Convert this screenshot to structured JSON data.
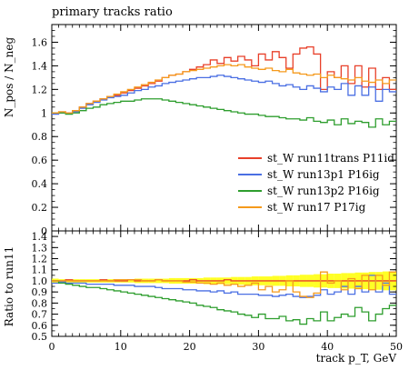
{
  "chart_data": [
    {
      "type": "line",
      "title": "primary tracks ratio",
      "ylabel": "N_pos / N_neg",
      "xlabel": "",
      "xlim": [
        0,
        50
      ],
      "ylim": [
        0,
        1.75
      ],
      "yticks": [
        "0",
        "0.2",
        "0.4",
        "0.6",
        "0.8",
        "1",
        "1.2",
        "1.4",
        "1.6"
      ],
      "legend_position": "lower-right",
      "grid": false,
      "step_histogram": true,
      "bin_width": 1,
      "series": [
        {
          "name": "st_W run11trans P11id",
          "color": "#e8402a",
          "values": [
            1.0,
            1.01,
            1.0,
            1.02,
            1.05,
            1.08,
            1.1,
            1.12,
            1.14,
            1.15,
            1.17,
            1.19,
            1.21,
            1.23,
            1.25,
            1.27,
            1.3,
            1.32,
            1.33,
            1.35,
            1.37,
            1.39,
            1.41,
            1.45,
            1.42,
            1.47,
            1.44,
            1.48,
            1.45,
            1.4,
            1.5,
            1.45,
            1.52,
            1.47,
            1.38,
            1.5,
            1.55,
            1.56,
            1.5,
            1.2,
            1.35,
            1.3,
            1.4,
            1.25,
            1.4,
            1.22,
            1.38,
            1.2,
            1.3,
            1.2
          ]
        },
        {
          "name": "st_W run13p1 P16ig",
          "color": "#4a6fe3",
          "values": [
            0.99,
            1.0,
            1.0,
            1.01,
            1.04,
            1.07,
            1.09,
            1.11,
            1.13,
            1.14,
            1.15,
            1.17,
            1.19,
            1.2,
            1.22,
            1.23,
            1.25,
            1.26,
            1.27,
            1.28,
            1.29,
            1.3,
            1.3,
            1.31,
            1.32,
            1.31,
            1.3,
            1.29,
            1.28,
            1.27,
            1.26,
            1.27,
            1.25,
            1.23,
            1.24,
            1.22,
            1.2,
            1.23,
            1.21,
            1.18,
            1.22,
            1.2,
            1.25,
            1.15,
            1.23,
            1.15,
            1.22,
            1.1,
            1.2,
            1.18
          ]
        },
        {
          "name": "st_W run13p2 P16ig",
          "color": "#2e9e2e",
          "values": [
            1.0,
            1.0,
            0.99,
            1.0,
            1.02,
            1.04,
            1.05,
            1.07,
            1.08,
            1.09,
            1.1,
            1.1,
            1.11,
            1.12,
            1.12,
            1.12,
            1.11,
            1.1,
            1.09,
            1.08,
            1.07,
            1.06,
            1.05,
            1.04,
            1.03,
            1.02,
            1.01,
            1.0,
            0.99,
            0.99,
            0.98,
            0.97,
            0.97,
            0.96,
            0.95,
            0.95,
            0.94,
            0.96,
            0.93,
            0.92,
            0.94,
            0.9,
            0.95,
            0.91,
            0.93,
            0.92,
            0.88,
            0.95,
            0.9,
            0.93
          ]
        },
        {
          "name": "st_W run17 P17ig",
          "color": "#f59a1c",
          "values": [
            1.0,
            1.01,
            1.0,
            1.02,
            1.05,
            1.08,
            1.1,
            1.12,
            1.14,
            1.16,
            1.18,
            1.2,
            1.22,
            1.24,
            1.26,
            1.28,
            1.3,
            1.32,
            1.33,
            1.35,
            1.36,
            1.37,
            1.38,
            1.39,
            1.4,
            1.41,
            1.4,
            1.41,
            1.39,
            1.38,
            1.37,
            1.38,
            1.36,
            1.35,
            1.37,
            1.34,
            1.33,
            1.32,
            1.33,
            1.3,
            1.32,
            1.3,
            1.29,
            1.28,
            1.3,
            1.27,
            1.26,
            1.28,
            1.25,
            1.28
          ]
        }
      ]
    },
    {
      "type": "line",
      "title": "",
      "ylabel": "Ratio to run11",
      "xlabel": "track p_T, GeV",
      "xlim": [
        0,
        50
      ],
      "ylim": [
        0.5,
        1.45
      ],
      "yticks": [
        "0.5",
        "0.6",
        "0.7",
        "0.8",
        "0.9",
        "1.0",
        "1.1",
        "1.2",
        "1.3",
        "1.4"
      ],
      "xticks": [
        "0",
        "10",
        "20",
        "30",
        "40",
        "50"
      ],
      "grid": false,
      "step_histogram": true,
      "bin_width": 1,
      "band": {
        "color": "#ffff00",
        "lower": [
          0.98,
          0.985,
          0.985,
          0.985,
          0.985,
          0.985,
          0.985,
          0.985,
          0.985,
          0.985,
          0.985,
          0.985,
          0.98,
          0.98,
          0.98,
          0.98,
          0.98,
          0.975,
          0.975,
          0.975,
          0.975,
          0.975,
          0.97,
          0.97,
          0.97,
          0.97,
          0.965,
          0.965,
          0.965,
          0.96,
          0.96,
          0.96,
          0.955,
          0.955,
          0.95,
          0.95,
          0.945,
          0.945,
          0.94,
          0.94,
          0.935,
          0.935,
          0.93,
          0.93,
          0.925,
          0.925,
          0.92,
          0.92,
          0.915,
          0.915
        ],
        "upper": [
          1.02,
          1.015,
          1.015,
          1.015,
          1.015,
          1.015,
          1.015,
          1.015,
          1.015,
          1.015,
          1.015,
          1.015,
          1.02,
          1.02,
          1.02,
          1.02,
          1.02,
          1.025,
          1.025,
          1.025,
          1.025,
          1.025,
          1.03,
          1.03,
          1.03,
          1.03,
          1.035,
          1.035,
          1.035,
          1.04,
          1.04,
          1.04,
          1.045,
          1.045,
          1.05,
          1.05,
          1.055,
          1.055,
          1.06,
          1.06,
          1.065,
          1.065,
          1.07,
          1.07,
          1.075,
          1.075,
          1.08,
          1.08,
          1.085,
          1.085
        ]
      },
      "series": [
        {
          "name": "st_W run11trans P11id",
          "color": "#e8402a",
          "values": [
            1.0,
            1.0,
            1.01,
            1.0,
            1.0,
            1.0,
            1.0,
            1.01,
            1.0,
            1.0,
            1.0,
            1.01,
            1.0,
            1.0,
            1.0,
            1.01,
            1.0,
            1.0,
            1.0,
            1.0,
            1.01,
            1.0,
            1.0,
            1.0,
            1.0,
            1.01,
            1.0,
            1.0,
            1.0,
            1.0,
            1.0,
            1.0,
            1.0,
            1.0,
            1.0,
            1.0,
            1.0,
            1.0,
            1.0,
            1.0,
            1.0,
            1.0,
            1.0,
            1.0,
            1.0,
            1.0,
            1.0,
            1.0,
            1.0,
            1.0
          ]
        },
        {
          "name": "st_W run13p1 P16ig",
          "color": "#4a6fe3",
          "values": [
            0.98,
            0.99,
            0.98,
            0.98,
            0.98,
            0.97,
            0.97,
            0.97,
            0.97,
            0.96,
            0.96,
            0.96,
            0.95,
            0.95,
            0.95,
            0.94,
            0.93,
            0.93,
            0.93,
            0.92,
            0.92,
            0.91,
            0.91,
            0.9,
            0.91,
            0.89,
            0.9,
            0.88,
            0.88,
            0.88,
            0.87,
            0.87,
            0.86,
            0.87,
            0.88,
            0.86,
            0.85,
            0.86,
            0.87,
            0.92,
            0.88,
            0.9,
            0.95,
            0.88,
            0.95,
            0.9,
            1.05,
            0.9,
            0.98,
            0.88
          ]
        },
        {
          "name": "st_W run13p2 P16ig",
          "color": "#2e9e2e",
          "values": [
            1.0,
            0.98,
            0.97,
            0.96,
            0.95,
            0.94,
            0.94,
            0.93,
            0.92,
            0.91,
            0.9,
            0.89,
            0.88,
            0.87,
            0.86,
            0.85,
            0.84,
            0.83,
            0.82,
            0.81,
            0.8,
            0.78,
            0.77,
            0.76,
            0.74,
            0.73,
            0.72,
            0.7,
            0.69,
            0.67,
            0.7,
            0.66,
            0.66,
            0.68,
            0.64,
            0.65,
            0.61,
            0.66,
            0.64,
            0.72,
            0.64,
            0.67,
            0.7,
            0.68,
            0.76,
            0.72,
            0.64,
            0.7,
            0.75,
            0.78
          ]
        },
        {
          "name": "st_W run17 P17ig",
          "color": "#f59a1c",
          "values": [
            1.0,
            1.0,
            1.0,
            1.0,
            1.0,
            1.0,
            1.0,
            1.0,
            1.0,
            1.01,
            1.01,
            1.01,
            1.01,
            1.0,
            1.0,
            1.01,
            1.0,
            1.0,
            1.0,
            0.99,
            0.99,
            0.98,
            0.98,
            0.97,
            0.98,
            0.96,
            0.97,
            0.95,
            0.96,
            0.98,
            0.92,
            0.95,
            0.9,
            0.92,
            1.0,
            0.9,
            0.86,
            0.85,
            0.89,
            1.08,
            0.98,
            1.0,
            0.92,
            1.02,
            0.93,
            1.05,
            0.92,
            1.05,
            0.96,
            1.08
          ]
        }
      ]
    }
  ]
}
